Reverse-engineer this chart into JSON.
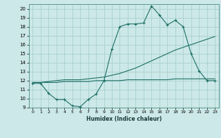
{
  "xlabel": "Humidex (Indice chaleur)",
  "xlim": [
    -0.5,
    23.5
  ],
  "ylim": [
    9,
    20.5
  ],
  "yticks": [
    9,
    10,
    11,
    12,
    13,
    14,
    15,
    16,
    17,
    18,
    19,
    20
  ],
  "xticks": [
    0,
    1,
    2,
    3,
    4,
    5,
    6,
    7,
    8,
    9,
    10,
    11,
    12,
    13,
    14,
    15,
    16,
    17,
    18,
    19,
    20,
    21,
    22,
    23
  ],
  "bg_color": "#cce8e8",
  "grid_color": "#aacfcf",
  "line_color": "#1a6e64",
  "line1_x": [
    0,
    1,
    2,
    3,
    4,
    5,
    6,
    7,
    8,
    9,
    10,
    11,
    12,
    13,
    14,
    15,
    16,
    17,
    18,
    19,
    20,
    21,
    22,
    23
  ],
  "line1_y": [
    11.7,
    11.7,
    10.6,
    9.9,
    9.9,
    9.2,
    9.1,
    9.9,
    10.5,
    12.0,
    15.5,
    18.0,
    18.3,
    18.3,
    18.4,
    20.3,
    19.3,
    18.2,
    18.7,
    18.0,
    15.0,
    13.1,
    12.0,
    12.0
  ],
  "line2_x": [
    0,
    1,
    2,
    3,
    4,
    5,
    6,
    7,
    8,
    9,
    10,
    11,
    12,
    13,
    14,
    15,
    16,
    17,
    18,
    19,
    20,
    21,
    22,
    23
  ],
  "line2_y": [
    11.8,
    11.8,
    11.9,
    12.0,
    12.1,
    12.1,
    12.1,
    12.2,
    12.3,
    12.4,
    12.6,
    12.8,
    13.1,
    13.4,
    13.8,
    14.2,
    14.6,
    15.0,
    15.4,
    15.7,
    16.0,
    16.3,
    16.6,
    16.9
  ],
  "line3_x": [
    0,
    1,
    2,
    3,
    4,
    5,
    6,
    7,
    8,
    9,
    10,
    11,
    12,
    13,
    14,
    15,
    16,
    17,
    18,
    19,
    20,
    21,
    22,
    23
  ],
  "line3_y": [
    11.8,
    11.8,
    11.8,
    11.8,
    11.9,
    11.9,
    11.9,
    11.9,
    12.0,
    12.0,
    12.0,
    12.0,
    12.1,
    12.1,
    12.1,
    12.1,
    12.1,
    12.1,
    12.2,
    12.2,
    12.2,
    12.2,
    12.2,
    12.2
  ]
}
